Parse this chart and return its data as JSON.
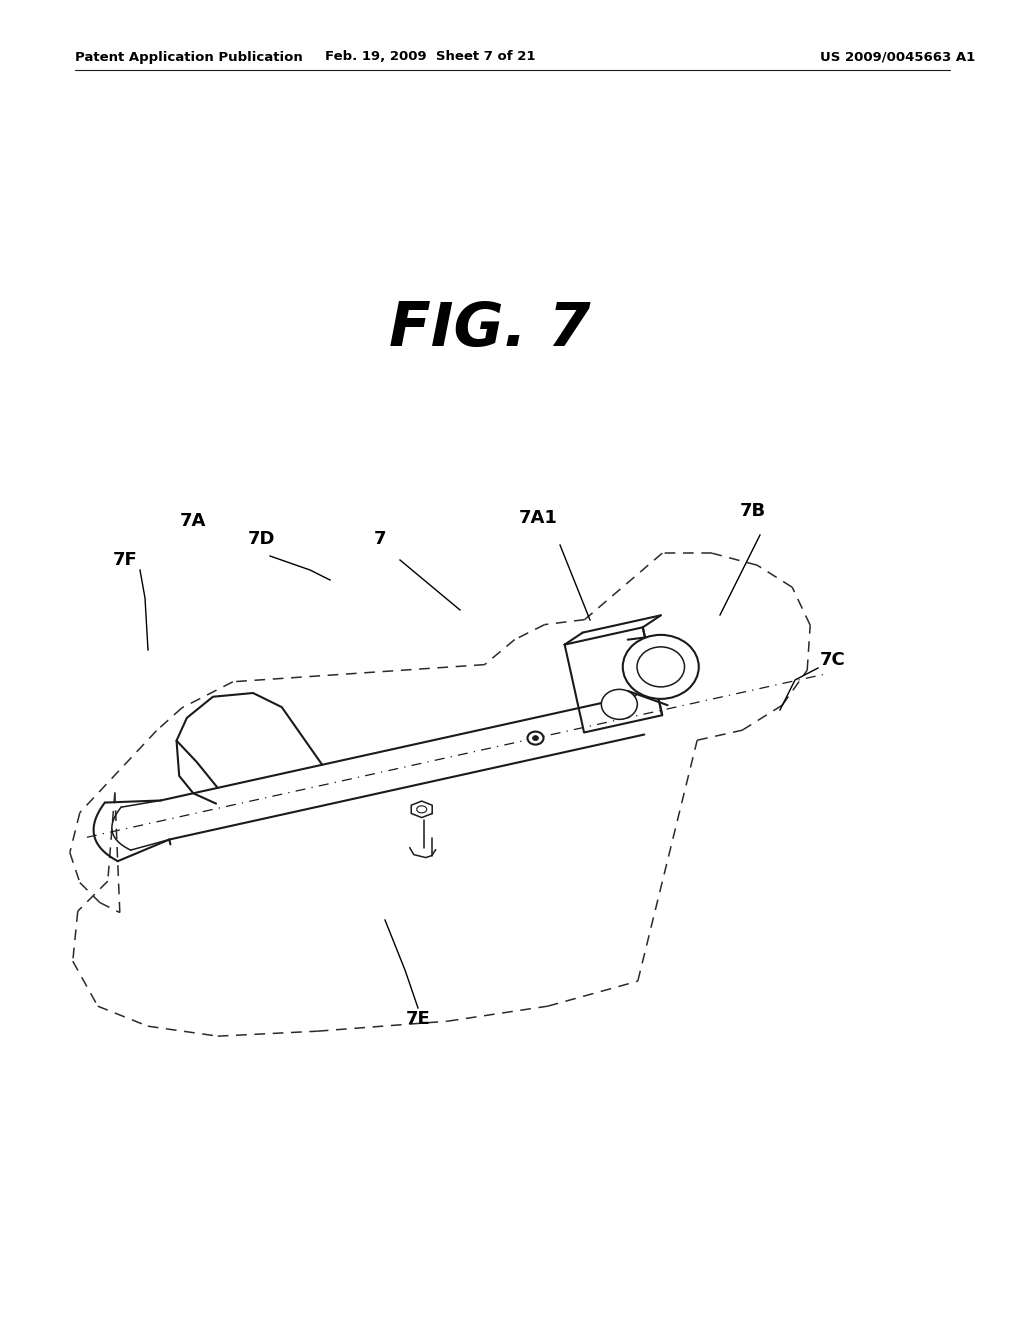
{
  "background_color": "#ffffff",
  "header_left": "Patent Application Publication",
  "header_middle": "Feb. 19, 2009  Sheet 7 of 21",
  "header_right": "US 2009/0045663 A1",
  "fig_title": "FIG. 7",
  "line_color": "#1a1a1a",
  "dash_color": "#2a2a2a"
}
